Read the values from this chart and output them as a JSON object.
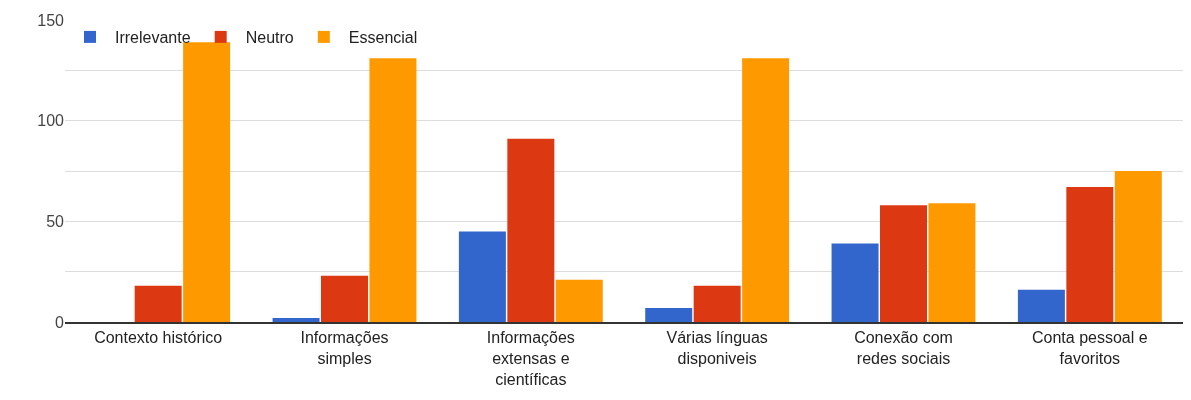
{
  "chart_data": {
    "type": "bar",
    "categories": [
      "Contexto histórico",
      "Informações simples",
      "Informações extensas e científicas",
      "Várias línguas disponiveis",
      "Conexão com redes sociais",
      "Conta pessoal e favoritos"
    ],
    "series": [
      {
        "name": "Irrelevante",
        "color": "#3366cc",
        "values": [
          0,
          2,
          45,
          7,
          39,
          16
        ]
      },
      {
        "name": "Neutro",
        "color": "#dc3912",
        "values": [
          18,
          23,
          91,
          18,
          58,
          67
        ]
      },
      {
        "name": "Essencial",
        "color": "#ff9900",
        "values": [
          139,
          131,
          21,
          131,
          59,
          75
        ]
      }
    ],
    "ylim": [
      0,
      150
    ],
    "yticks": [
      0,
      {
        "value": 25,
        "label": null
      },
      50,
      {
        "value": 75,
        "label": null
      },
      100,
      {
        "value": 125,
        "label": null
      },
      150
    ],
    "grid": "y",
    "legend": "top left"
  }
}
